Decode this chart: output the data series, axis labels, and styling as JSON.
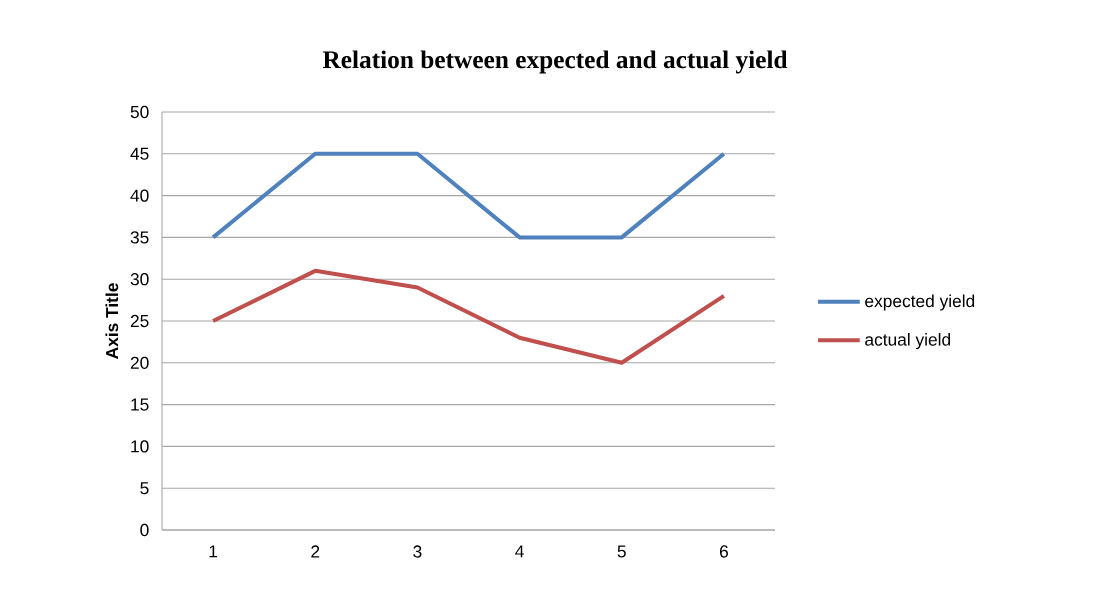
{
  "chart_data": {
    "type": "line",
    "title": "Relation between expected and actual yield",
    "ylabel": "Axis Title",
    "categories": [
      "1",
      "2",
      "3",
      "4",
      "5",
      "6"
    ],
    "series": [
      {
        "name": "expected yield",
        "color": "#4f81bd",
        "values": [
          35,
          45,
          45,
          35,
          35,
          45
        ]
      },
      {
        "name": "actual yield",
        "color": "#c0504d",
        "values": [
          25,
          31,
          29,
          23,
          20,
          28
        ]
      }
    ],
    "ylim": [
      0,
      50
    ],
    "yticks": [
      0,
      5,
      10,
      15,
      20,
      25,
      30,
      35,
      40,
      45,
      50
    ],
    "grid": "y",
    "legend": "right",
    "marker": "none",
    "line_style": "solid"
  }
}
